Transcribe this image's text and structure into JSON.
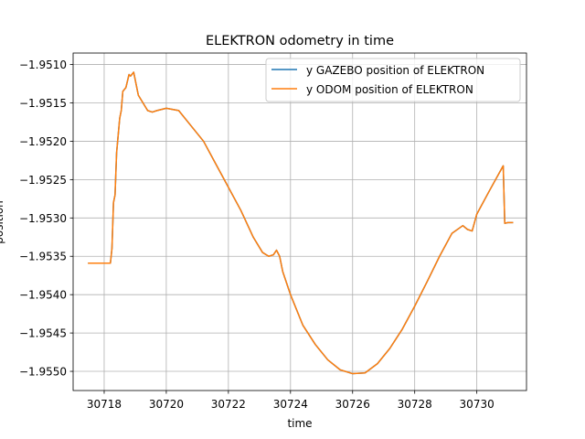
{
  "chart_data": {
    "type": "line",
    "title": "ELEKTRON odometry in time",
    "xlabel": "time",
    "ylabel": "position",
    "xlim": [
      30717.0,
      30731.6
    ],
    "ylim": [
      -1.95525,
      -1.95085
    ],
    "x_ticks": [
      30718,
      30720,
      30722,
      30724,
      30726,
      30728,
      30730
    ],
    "x_tick_labels": [
      "30718",
      "30720",
      "30722",
      "30724",
      "30726",
      "30728",
      "30730"
    ],
    "y_ticks": [
      -1.951,
      -1.9515,
      -1.952,
      -1.9525,
      -1.953,
      -1.9535,
      -1.954,
      -1.9545,
      -1.955
    ],
    "y_tick_labels": [
      "−1.9510",
      "−1.9515",
      "−1.9520",
      "−1.9525",
      "−1.9530",
      "−1.9535",
      "−1.9540",
      "−1.9545",
      "−1.9550"
    ],
    "grid": true,
    "legend_position": "top-right",
    "series": [
      {
        "name": "y GAZEBO position of ELEKTRON",
        "color": "#1f77b4",
        "x": [
          30717.5,
          30718.2,
          30718.25,
          30718.3,
          30718.35,
          30718.4,
          30718.5,
          30718.55,
          30718.6,
          30718.7,
          30718.8,
          30718.85,
          30718.95,
          30719.1,
          30719.4,
          30719.55,
          30719.7,
          30720.0,
          30720.4,
          30720.8,
          30721.2,
          30721.6,
          30722.0,
          30722.4,
          30722.8,
          30723.1,
          30723.3,
          30723.45,
          30723.55,
          30723.65,
          30723.75,
          30724.0,
          30724.4,
          30724.8,
          30725.2,
          30725.6,
          30726.0,
          30726.4,
          30726.8,
          30727.2,
          30727.6,
          30728.0,
          30728.4,
          30728.8,
          30729.2,
          30729.55,
          30729.7,
          30729.85,
          30730.0,
          30730.4,
          30730.85,
          30730.9,
          30731.0,
          30731.15
        ],
        "y": [
          -1.95359,
          -1.95359,
          -1.9534,
          -1.9528,
          -1.9527,
          -1.95215,
          -1.9517,
          -1.9516,
          -1.95135,
          -1.9513,
          -1.95113,
          -1.95115,
          -1.9511,
          -1.9514,
          -1.9516,
          -1.95162,
          -1.9516,
          -1.95157,
          -1.9516,
          -1.9518,
          -1.952,
          -1.9523,
          -1.9526,
          -1.9529,
          -1.95325,
          -1.95345,
          -1.9535,
          -1.95348,
          -1.95342,
          -1.9535,
          -1.9537,
          -1.954,
          -1.9544,
          -1.95465,
          -1.95485,
          -1.95498,
          -1.95503,
          -1.95502,
          -1.9549,
          -1.9547,
          -1.95445,
          -1.95415,
          -1.95383,
          -1.9535,
          -1.9532,
          -1.9531,
          -1.95315,
          -1.95317,
          -1.95295,
          -1.95265,
          -1.95232,
          -1.95307,
          -1.95306,
          -1.95306
        ]
      },
      {
        "name": "y ODOM position of ELEKTRON",
        "color": "#ff7f0e",
        "x": [
          30717.5,
          30718.2,
          30718.25,
          30718.3,
          30718.35,
          30718.4,
          30718.5,
          30718.55,
          30718.6,
          30718.7,
          30718.8,
          30718.85,
          30718.95,
          30719.1,
          30719.4,
          30719.55,
          30719.7,
          30720.0,
          30720.4,
          30720.8,
          30721.2,
          30721.6,
          30722.0,
          30722.4,
          30722.8,
          30723.1,
          30723.3,
          30723.45,
          30723.55,
          30723.65,
          30723.75,
          30724.0,
          30724.4,
          30724.8,
          30725.2,
          30725.6,
          30726.0,
          30726.4,
          30726.8,
          30727.2,
          30727.6,
          30728.0,
          30728.4,
          30728.8,
          30729.2,
          30729.55,
          30729.7,
          30729.85,
          30730.0,
          30730.4,
          30730.85,
          30730.9,
          30731.0,
          30731.15
        ],
        "y": [
          -1.95359,
          -1.95359,
          -1.9534,
          -1.9528,
          -1.9527,
          -1.95215,
          -1.9517,
          -1.9516,
          -1.95135,
          -1.9513,
          -1.95113,
          -1.95115,
          -1.9511,
          -1.9514,
          -1.9516,
          -1.95162,
          -1.9516,
          -1.95157,
          -1.9516,
          -1.9518,
          -1.952,
          -1.9523,
          -1.9526,
          -1.9529,
          -1.95325,
          -1.95345,
          -1.9535,
          -1.95348,
          -1.95342,
          -1.9535,
          -1.9537,
          -1.954,
          -1.9544,
          -1.95465,
          -1.95485,
          -1.95498,
          -1.95503,
          -1.95502,
          -1.9549,
          -1.9547,
          -1.95445,
          -1.95415,
          -1.95383,
          -1.9535,
          -1.9532,
          -1.9531,
          -1.95315,
          -1.95317,
          -1.95295,
          -1.95265,
          -1.95232,
          -1.95307,
          -1.95306,
          -1.95306
        ]
      }
    ]
  }
}
